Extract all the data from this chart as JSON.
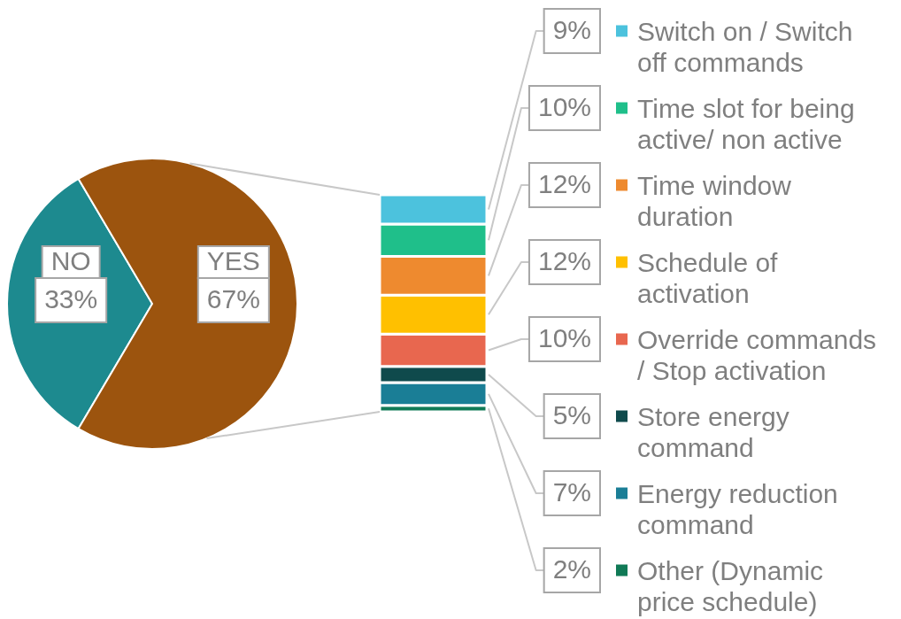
{
  "chart_data": [
    {
      "type": "pie",
      "categories": [
        "NO",
        "YES"
      ],
      "values": [
        33,
        67
      ],
      "colors": [
        "#1d8a8f",
        "#9c540e"
      ],
      "value_labels": [
        "33%",
        "67%"
      ]
    },
    {
      "type": "bar",
      "stacked": true,
      "categories": [
        null
      ],
      "legend": "right",
      "series": [
        {
          "name": "Other (Dynamic price schedule)",
          "color": "#107a56",
          "values": [
            2
          ],
          "value_labels": [
            "2%"
          ]
        },
        {
          "name": "Energy reduction command",
          "color": "#1a7e96",
          "values": [
            7
          ],
          "value_labels": [
            "7%"
          ]
        },
        {
          "name": "Store energy command",
          "color": "#0f4a4c",
          "values": [
            5
          ],
          "value_labels": [
            "5%"
          ]
        },
        {
          "name": "Override commands / Stop activation",
          "color": "#e8674f",
          "values": [
            10
          ],
          "value_labels": [
            "10%"
          ]
        },
        {
          "name": "Schedule of activation",
          "color": "#ffc000",
          "values": [
            12
          ],
          "value_labels": [
            "12%"
          ]
        },
        {
          "name": "Time window duration",
          "color": "#ee8a2f",
          "values": [
            12
          ],
          "value_labels": [
            "12%"
          ]
        },
        {
          "name": "Time slot for being active/ non active",
          "color": "#1fbf8a",
          "values": [
            10
          ],
          "value_labels": [
            "10%"
          ]
        },
        {
          "name": "Switch on / Switch off commands",
          "color": "#4cc2dd",
          "values": [
            9
          ],
          "value_labels": [
            "9%"
          ]
        }
      ]
    }
  ]
}
